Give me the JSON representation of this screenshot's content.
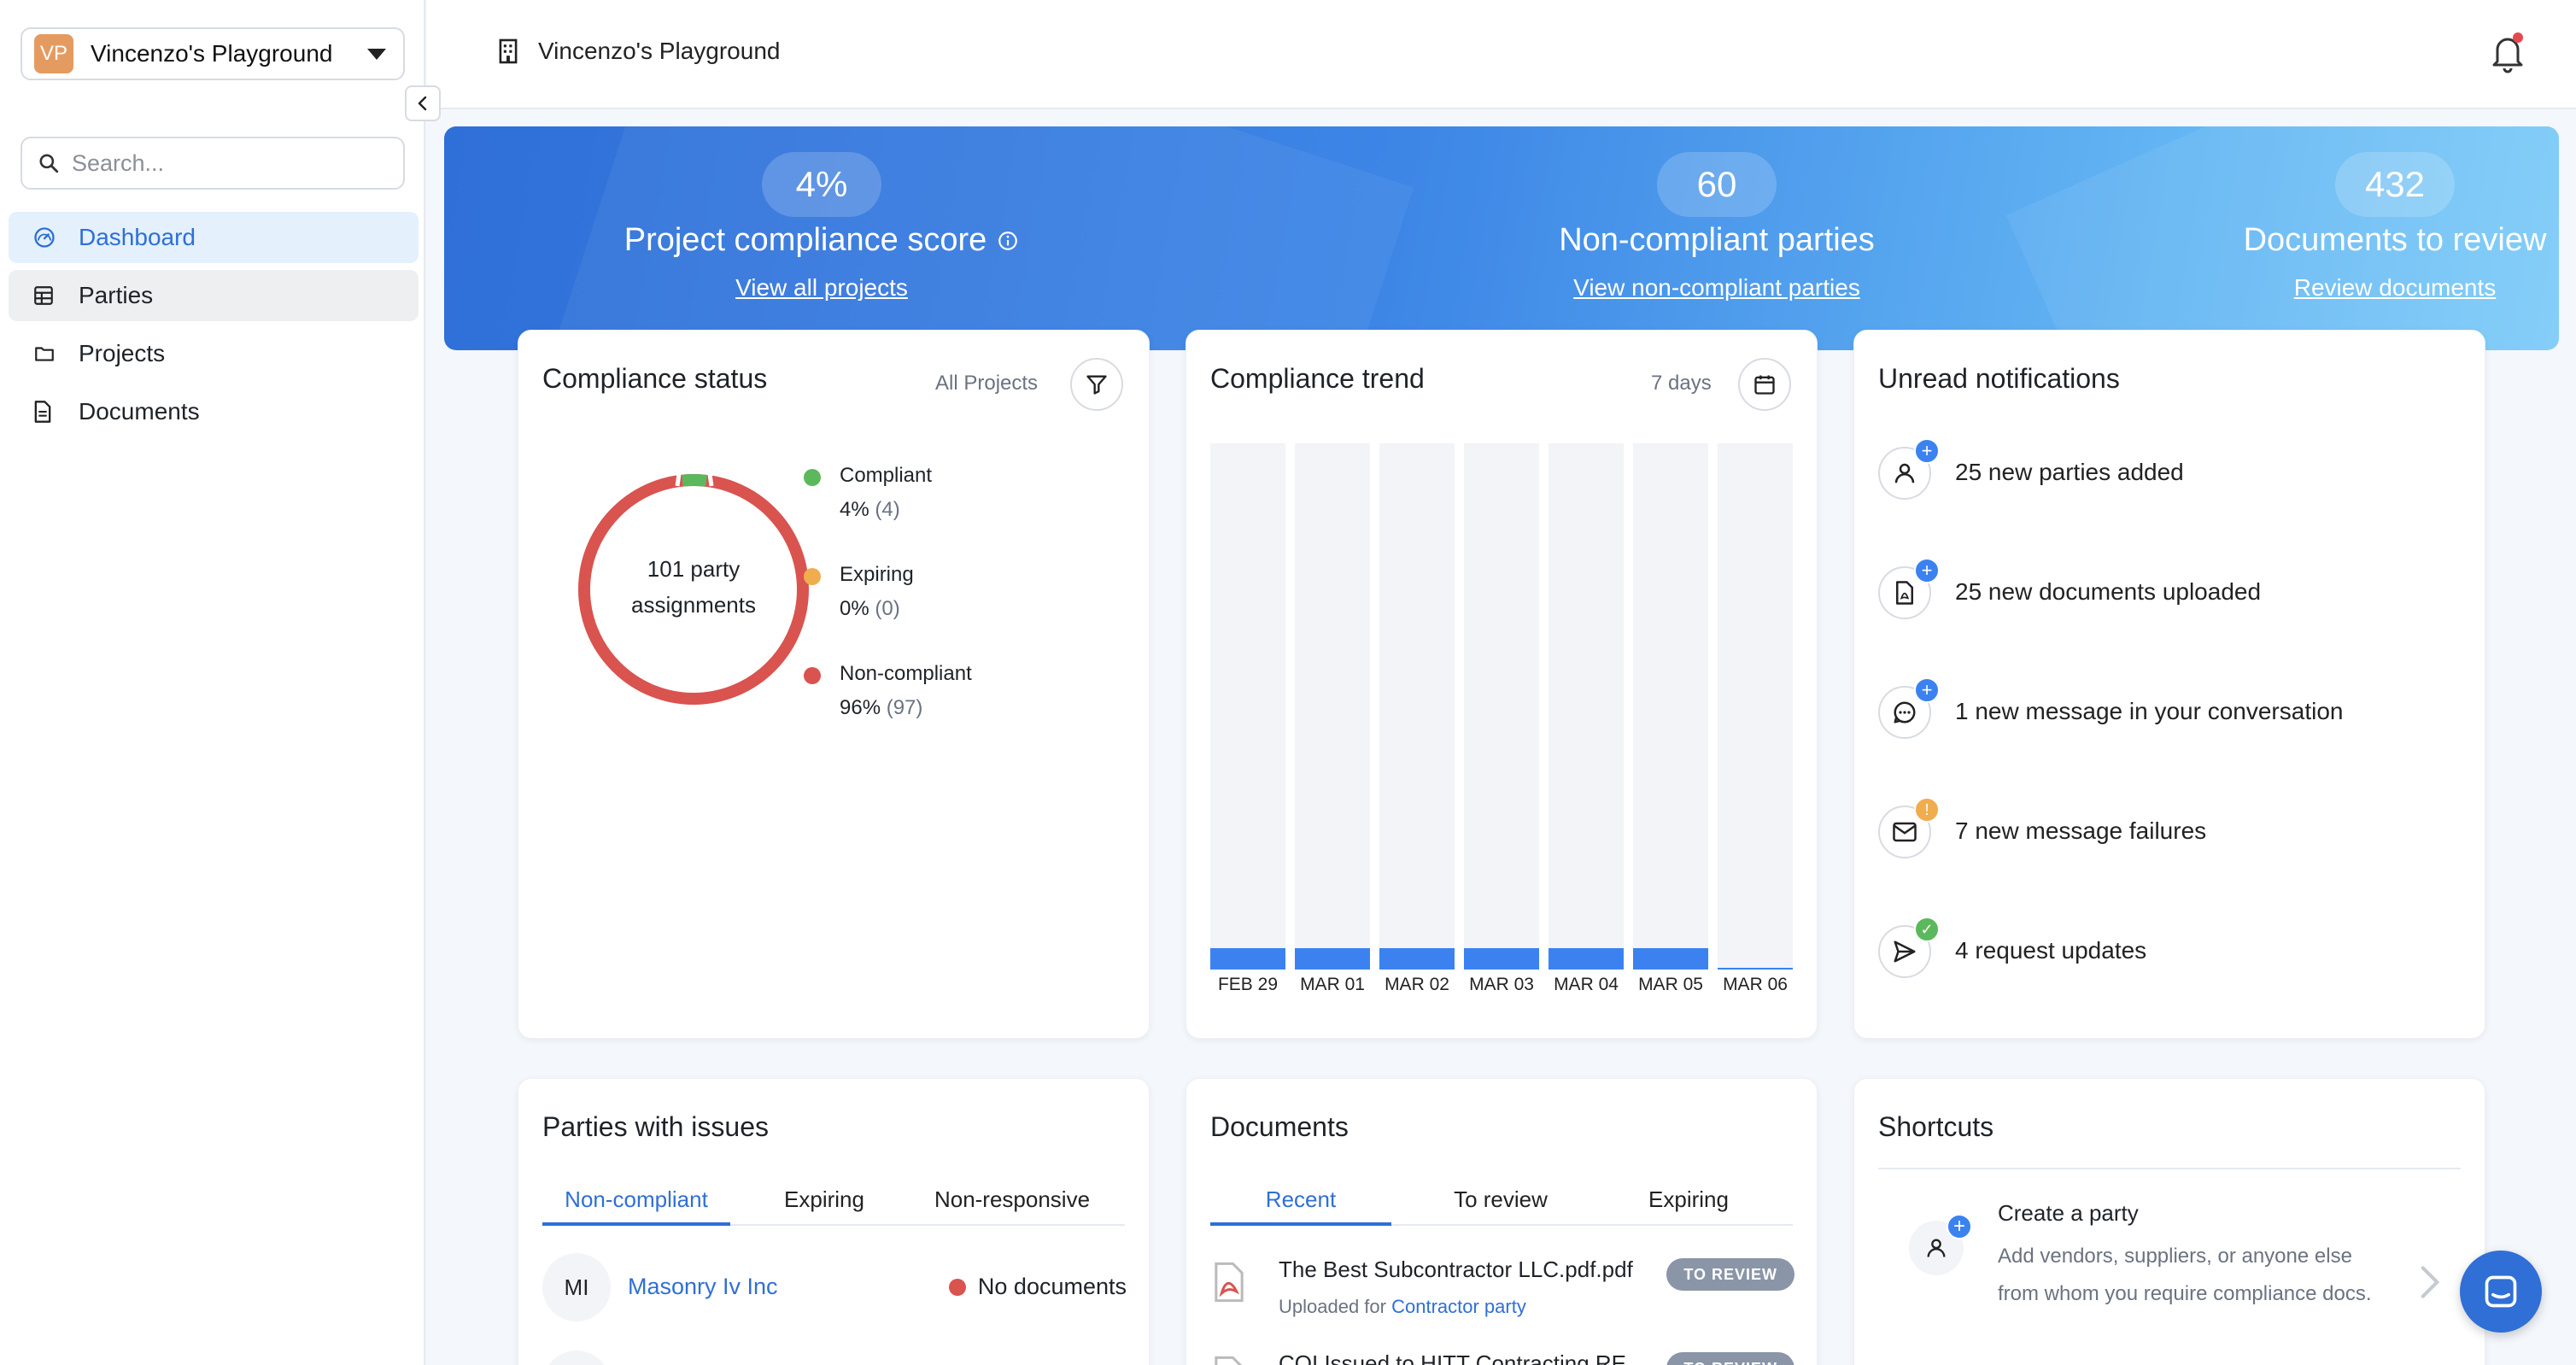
{
  "workspace": {
    "initials": "VP",
    "name": "Vincenzo's Playground"
  },
  "search": {
    "placeholder": "Search..."
  },
  "nav": {
    "items": [
      {
        "label": "Dashboard",
        "icon": "dashboard-gauge-icon"
      },
      {
        "label": "Parties",
        "icon": "parties-table-icon"
      },
      {
        "label": "Projects",
        "icon": "folder-icon"
      },
      {
        "label": "Documents",
        "icon": "document-icon"
      }
    ]
  },
  "header": {
    "title": "Vincenzo's Playground"
  },
  "banner": {
    "score": {
      "value": "4%",
      "label": "Project compliance score",
      "link": "View all projects"
    },
    "noncompliant": {
      "value": "60",
      "label": "Non-compliant parties",
      "link": "View non-compliant parties"
    },
    "documents": {
      "value": "432",
      "label": "Documents to review",
      "link": "Review documents"
    }
  },
  "compliance_status": {
    "title": "Compliance status",
    "filter_label": "All Projects",
    "donut_center_line1": "101 party",
    "donut_center_line2": "assignments",
    "legend": [
      {
        "label": "Compliant",
        "percent": "4%",
        "count": "(4)",
        "color": "#5cb85c"
      },
      {
        "label": "Expiring",
        "percent": "0%",
        "count": "(0)",
        "color": "#f0ad4e"
      },
      {
        "label": "Non-compliant",
        "percent": "96%",
        "count": "(97)",
        "color": "#d9534f"
      }
    ]
  },
  "compliance_trend": {
    "title": "Compliance trend",
    "range_label": "7 days"
  },
  "chart_data": {
    "type": "bar",
    "categories": [
      "FEB 29",
      "MAR 01",
      "MAR 02",
      "MAR 03",
      "MAR 04",
      "MAR 05",
      "MAR 06"
    ],
    "values": [
      4,
      4,
      4,
      4,
      4,
      4,
      0
    ],
    "ylim": [
      0,
      100
    ],
    "color": "#3b82f0"
  },
  "notifications": {
    "title": "Unread notifications",
    "items": [
      {
        "text": "25 new parties added",
        "icon": "user-icon",
        "badge": "plus-badge-icon",
        "badge_color": "#3b82f0",
        "badge_glyph": "+"
      },
      {
        "text": "25 new documents uploaded",
        "icon": "pdf-document-icon",
        "badge": "plus-badge-icon",
        "badge_color": "#3b82f0",
        "badge_glyph": "+"
      },
      {
        "text": "1 new message in your conversation",
        "icon": "chat-bubble-icon",
        "badge": "plus-badge-icon",
        "badge_color": "#3b82f0",
        "badge_glyph": "+"
      },
      {
        "text": "7 new message failures",
        "icon": "envelope-icon",
        "badge": "warning-badge-icon",
        "badge_color": "#f0ad4e",
        "badge_glyph": "!"
      },
      {
        "text": "4 request updates",
        "icon": "send-icon",
        "badge": "check-badge-icon",
        "badge_color": "#5cb85c",
        "badge_glyph": "✓"
      }
    ]
  },
  "parties_issues": {
    "title": "Parties with issues",
    "tabs": [
      "Non-compliant",
      "Expiring",
      "Non-responsive"
    ],
    "rows": [
      {
        "initials": "MI",
        "name": "Masonry Iv Inc",
        "status": "No documents"
      }
    ]
  },
  "documents_card": {
    "title": "Documents",
    "tabs": [
      "Recent",
      "To review",
      "Expiring"
    ],
    "rows": [
      {
        "name": "The Best Subcontractor LLC.pdf.pdf",
        "uploaded_prefix": "Uploaded for",
        "uploaded_for": "Contractor party",
        "tag": "TO REVIEW"
      },
      {
        "name": "COI Issued to HITT Contracting RE",
        "tag": "TO REVIEW"
      }
    ]
  },
  "shortcuts": {
    "title": "Shortcuts",
    "items": [
      {
        "title": "Create a party",
        "description": "Add vendors, suppliers, or anyone else from whom you require compliance docs."
      }
    ]
  }
}
